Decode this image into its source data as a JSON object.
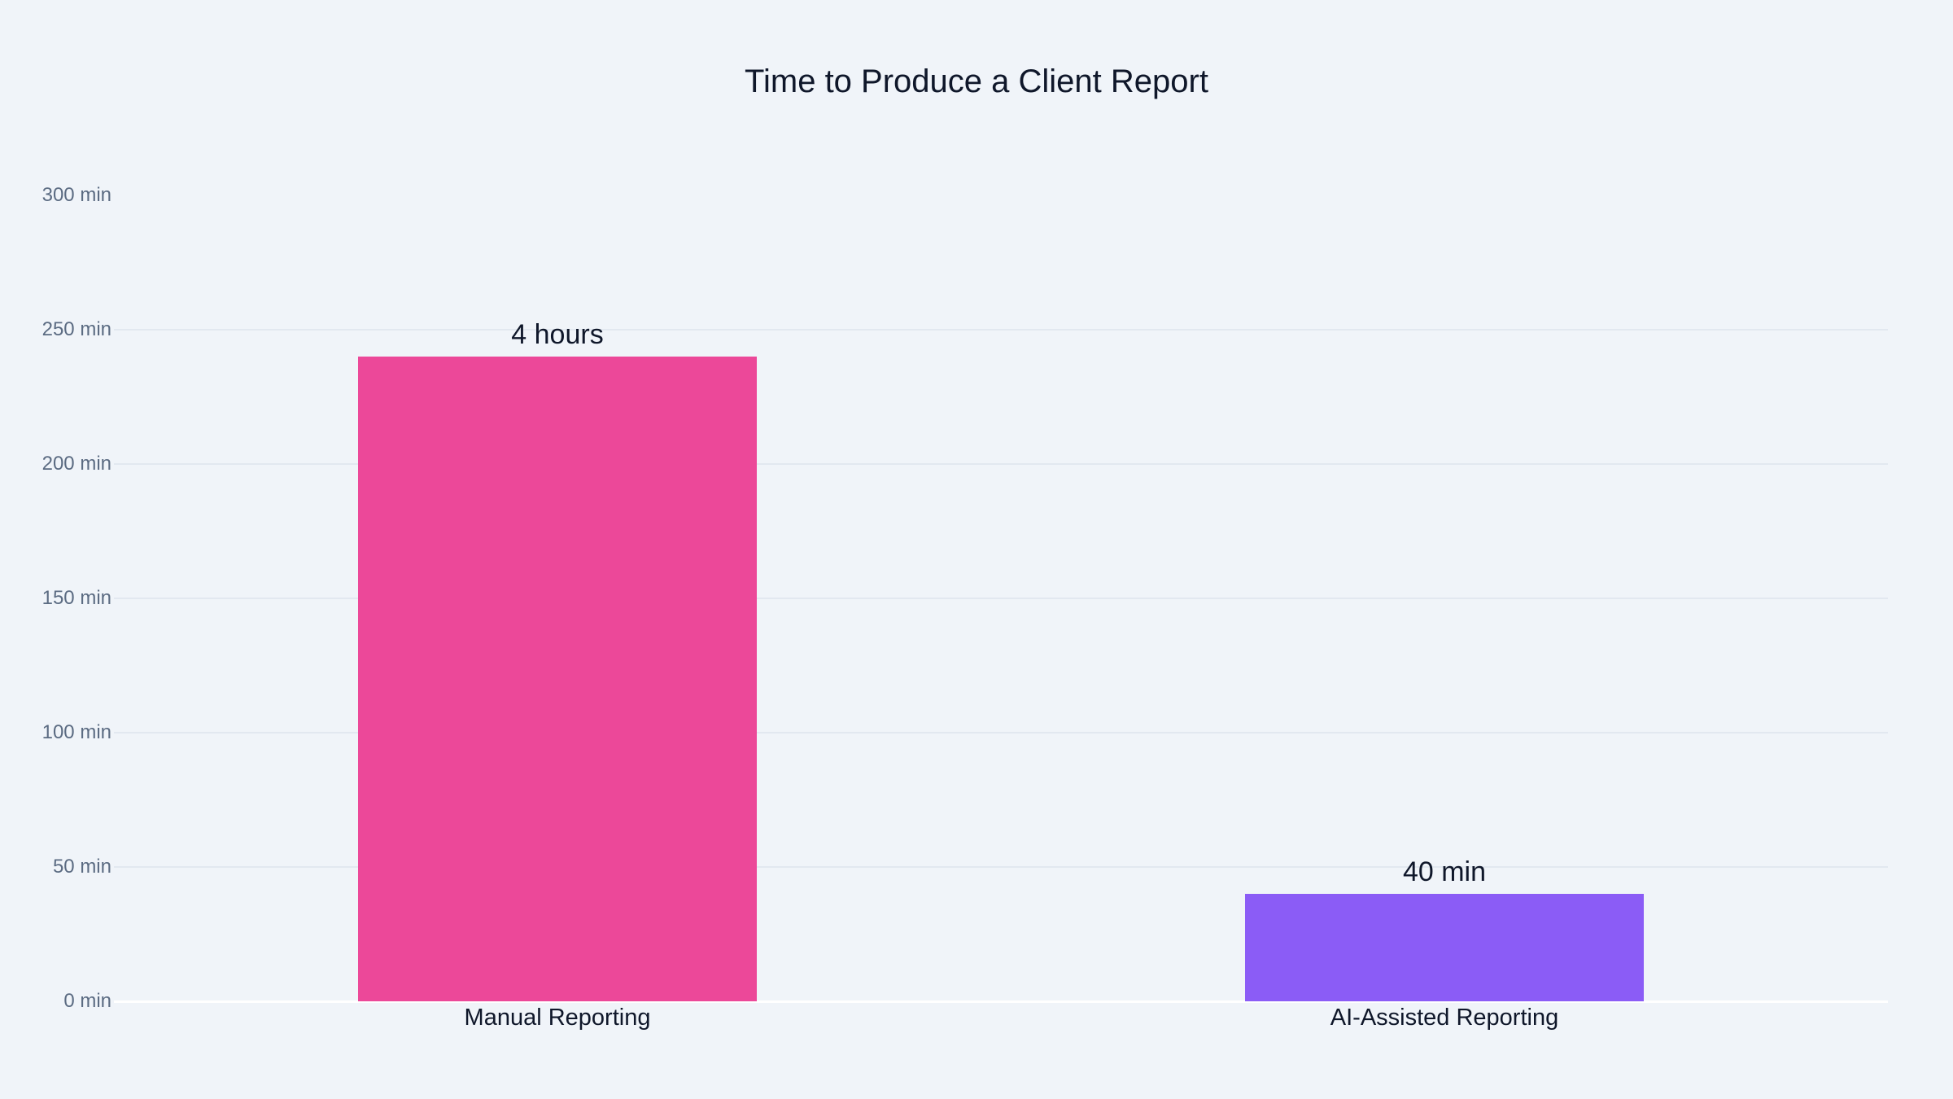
{
  "chart_data": {
    "type": "bar",
    "title": "Time to Produce a Client Report",
    "xlabel": "",
    "ylabel": "",
    "categories": [
      "Manual Reporting",
      "AI-Assisted Reporting"
    ],
    "values": [
      240,
      40
    ],
    "value_labels": [
      "4 hours",
      "40 min"
    ],
    "colors": [
      "#ec4899",
      "#8b5cf6"
    ],
    "ylim": [
      0,
      300
    ],
    "yticks": [
      0,
      50,
      100,
      150,
      200,
      250,
      300
    ],
    "ytick_labels": [
      "0 min",
      "50 min",
      "100 min",
      "150 min",
      "200 min",
      "250 min",
      "300 min"
    ],
    "grid": true,
    "legend": "none"
  },
  "title": "Time to Produce a Client Report",
  "yaxis": {
    "ticks": [
      "0 min",
      "50 min",
      "100 min",
      "150 min",
      "200 min",
      "250 min",
      "300 min"
    ]
  },
  "bars": [
    {
      "category": "Manual Reporting",
      "label": "4 hours",
      "value": 240,
      "color": "#ec4899"
    },
    {
      "category": "AI-Assisted Reporting",
      "label": "40 min",
      "value": 40,
      "color": "#8b5cf6"
    }
  ]
}
